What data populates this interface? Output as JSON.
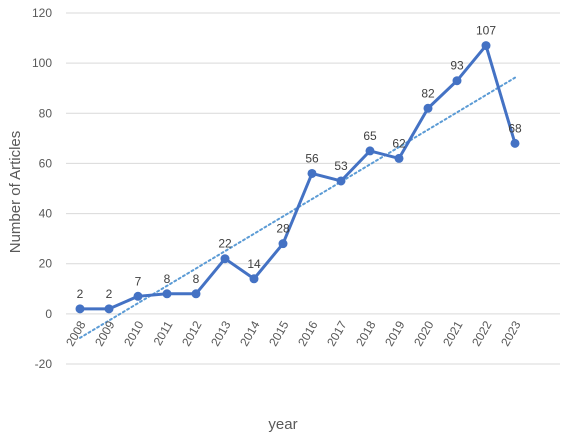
{
  "chart_data": {
    "type": "line",
    "title": "",
    "xlabel": "year",
    "ylabel": "Number of Articles",
    "categories": [
      "2008",
      "2009",
      "2010",
      "2011",
      "2012",
      "2013",
      "2014",
      "2015",
      "2016",
      "2017",
      "2018",
      "2019",
      "2020",
      "2021",
      "2022",
      "2023"
    ],
    "series": [
      {
        "values": [
          2,
          2,
          7,
          8,
          8,
          22,
          14,
          28,
          56,
          53,
          65,
          62,
          82,
          93,
          107,
          68
        ],
        "color": "#4472c4"
      }
    ],
    "trendline": {
      "kind": "linear",
      "style": "dotted",
      "color": "#5b9bd5"
    },
    "ylim": [
      -20,
      120
    ],
    "yticks": [
      -20,
      0,
      20,
      40,
      60,
      80,
      100,
      120
    ],
    "grid": true,
    "legend": "none",
    "data_labels": true
  }
}
